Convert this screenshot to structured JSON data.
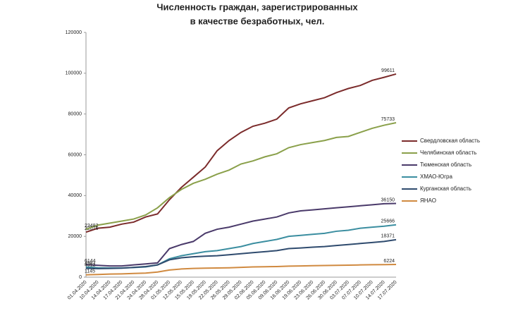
{
  "chart_data": {
    "type": "line",
    "title": [
      "Численность граждан, зарегистрированных",
      "в качестве безработных, чел."
    ],
    "categories": [
      "01.04.2020",
      "10.04.2020",
      "14.04.2020",
      "17.04.2020",
      "21.04.2020",
      "24.04.2020",
      "28.04.2020",
      "01.05.2020",
      "12.05.2020",
      "15.05.2020",
      "19.05.2020",
      "22.05.2020",
      "26.05.2020",
      "29.05.2020",
      "02.06.2020",
      "05.06.2020",
      "09.06.2020",
      "16.06.2020",
      "19.06.2020",
      "23.06.2020",
      "26.06.2020",
      "30.06.2020",
      "03.07.2020",
      "07.07.2020",
      "10.07.2020",
      "14.07.2020",
      "17.07.2020"
    ],
    "ylim": [
      0,
      120000
    ],
    "yticks": [
      0,
      20000,
      40000,
      60000,
      80000,
      100000,
      120000
    ],
    "grid": false,
    "legend": "right",
    "series": [
      {
        "name": "Свердловская область",
        "color": "#7b2b2b",
        "values": [
          22076,
          24000,
          24500,
          26000,
          27000,
          29500,
          31000,
          38000,
          44000,
          49000,
          54000,
          62000,
          67000,
          71000,
          74000,
          75500,
          77500,
          83000,
          85000,
          86500,
          88000,
          90500,
          92500,
          94000,
          96500,
          98000,
          99611
        ]
      },
      {
        "name": "Челябинская область",
        "color": "#8aa04a",
        "values": [
          23482,
          25500,
          26500,
          27500,
          28500,
          30500,
          34000,
          39000,
          43000,
          46000,
          48000,
          50500,
          52500,
          55500,
          57000,
          59000,
          60500,
          63500,
          65000,
          66000,
          67000,
          68500,
          69000,
          71000,
          73000,
          74500,
          75733
        ]
      },
      {
        "name": "Тюменская область",
        "color": "#4a3a6a",
        "values": [
          6144,
          5800,
          5500,
          5500,
          6000,
          6500,
          7000,
          14000,
          16000,
          17500,
          21500,
          23500,
          24500,
          26000,
          27500,
          28500,
          29500,
          31500,
          32500,
          33000,
          33500,
          34000,
          34500,
          35000,
          35500,
          36000,
          36150
        ]
      },
      {
        "name": "ХМАО-Югра",
        "color": "#3b8ea0",
        "values": [
          4987,
          4600,
          4500,
          4500,
          4700,
          5000,
          6000,
          9000,
          10500,
          11500,
          12500,
          13000,
          14000,
          15000,
          16500,
          17500,
          18500,
          20000,
          20500,
          21000,
          21500,
          22500,
          23000,
          24000,
          24500,
          25000,
          25666
        ]
      },
      {
        "name": "Курганская область",
        "color": "#2f4b6e",
        "values": [
          4312,
          4200,
          4300,
          4400,
          4800,
          5200,
          6000,
          8500,
          9500,
          10000,
          10300,
          10500,
          11000,
          11500,
          12000,
          12500,
          13000,
          14000,
          14300,
          14700,
          15000,
          15500,
          16000,
          16500,
          17000,
          17500,
          18371
        ]
      },
      {
        "name": "ЯНАО",
        "color": "#d08a40",
        "values": [
          1145,
          1300,
          1500,
          1600,
          1800,
          2000,
          2500,
          3500,
          4000,
          4300,
          4400,
          4500,
          4600,
          4800,
          5000,
          5100,
          5200,
          5400,
          5500,
          5600,
          5700,
          5800,
          5900,
          6000,
          6100,
          6150,
          6224
        ]
      }
    ]
  }
}
